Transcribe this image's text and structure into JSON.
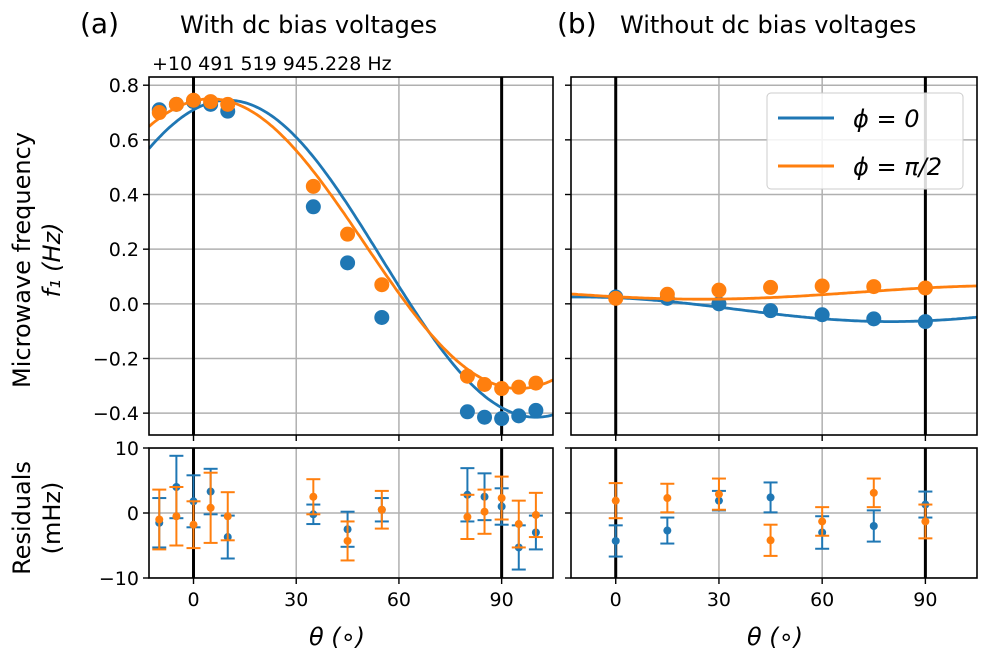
{
  "figure": {
    "panel_a_tag": "(a)",
    "panel_a_title": "With dc bias voltages",
    "panel_b_tag": "(b)",
    "panel_b_title": "Without dc bias voltages",
    "offset_text": "+10 491 519 945.228 Hz",
    "ylabel_top_line1": "Microwave frequency",
    "ylabel_top_line2": "f₁ (Hz)",
    "ylabel_bottom_line1": "Residuals",
    "ylabel_bottom_line2": "(mHz)",
    "xlabel": "θ (∘)",
    "legend": [
      "ϕ = 0",
      "ϕ = π/2"
    ]
  },
  "colors": {
    "blue": "#1f77b4",
    "orange": "#ff7f0e",
    "grid": "#b0b0b0",
    "vline": "#000000"
  },
  "chart_data": [
    {
      "panel": "a-main",
      "type": "scatter",
      "xlim": [
        -13,
        105
      ],
      "ylim": [
        -0.48,
        0.83
      ],
      "xticks": [
        0,
        30,
        60,
        90
      ],
      "yticks": [
        0.8,
        0.6,
        0.4,
        0.2,
        0.0,
        -0.2,
        -0.4
      ],
      "ytick_labels": [
        "0.8",
        "0.6",
        "0.4",
        "0.2",
        "0.0",
        "−0.2",
        "−0.4"
      ],
      "grid": true,
      "vlines": [
        0,
        90
      ],
      "series": [
        {
          "name": "ϕ = 0",
          "color": "blue",
          "x": [
            -10,
            -5,
            0,
            5,
            10,
            35,
            45,
            55,
            80,
            85,
            90,
            95,
            100
          ],
          "y": [
            0.71,
            0.73,
            0.74,
            0.73,
            0.705,
            0.355,
            0.15,
            -0.05,
            -0.395,
            -0.415,
            -0.42,
            -0.41,
            -0.39
          ],
          "fit": {
            "mean": 0.165,
            "amp": 0.58,
            "phase_deg": 10.0
          }
        },
        {
          "name": "ϕ = π/2",
          "color": "orange",
          "x": [
            -10,
            -5,
            0,
            5,
            10,
            35,
            45,
            55,
            80,
            85,
            90,
            95,
            100
          ],
          "y": [
            0.7,
            0.73,
            0.745,
            0.74,
            0.73,
            0.43,
            0.255,
            0.07,
            -0.265,
            -0.295,
            -0.31,
            -0.305,
            -0.29
          ],
          "fit": {
            "mean": 0.22,
            "amp": 0.53,
            "phase_deg": 5.0
          }
        }
      ]
    },
    {
      "panel": "a-residuals",
      "type": "scatter",
      "xlim": [
        -13,
        105
      ],
      "ylim": [
        -10,
        10
      ],
      "xticks": [
        0,
        30,
        60,
        90
      ],
      "xtick_labels": [
        "0",
        "30",
        "60",
        "90"
      ],
      "yticks": [
        10,
        0,
        -10
      ],
      "ytick_labels": [
        "10",
        "0",
        "−10"
      ],
      "grid": true,
      "vlines": [
        0,
        90
      ],
      "series": [
        {
          "name": "ϕ = 0",
          "color": "blue",
          "x": [
            -10,
            -5,
            0,
            5,
            10,
            35,
            45,
            55,
            80,
            85,
            90,
            95,
            100
          ],
          "y": [
            -1.5,
            4.0,
            1.8,
            3.3,
            -3.7,
            -0.2,
            -2.5,
            0.5,
            2.8,
            2.5,
            1.0,
            -5.3,
            -3.0
          ],
          "err": [
            3.8,
            4.8,
            4.0,
            3.5,
            3.3,
            1.5,
            2.7,
            1.8,
            4.1,
            3.6,
            2.8,
            3.4,
            2.6
          ]
        },
        {
          "name": "ϕ = π/2",
          "color": "orange",
          "x": [
            -10,
            -5,
            0,
            5,
            10,
            35,
            45,
            55,
            80,
            85,
            90,
            95,
            100
          ],
          "y": [
            -1.0,
            -0.5,
            -1.8,
            0.8,
            -0.5,
            2.5,
            -4.3,
            0.5,
            -0.6,
            0.2,
            2.3,
            -1.7,
            -0.3
          ],
          "err": [
            4.6,
            4.5,
            3.6,
            5.4,
            3.7,
            2.7,
            3.0,
            2.9,
            3.4,
            3.4,
            3.3,
            3.6,
            3.4
          ]
        }
      ]
    },
    {
      "panel": "b-main",
      "type": "scatter",
      "xlim": [
        -13,
        105
      ],
      "ylim": [
        -0.48,
        0.83
      ],
      "xticks": [
        0,
        30,
        60,
        90
      ],
      "grid": true,
      "vlines": [
        0,
        90
      ],
      "series": [
        {
          "name": "ϕ = 0",
          "color": "blue",
          "x": [
            0,
            15,
            30,
            45,
            60,
            75,
            90
          ],
          "y": [
            0.025,
            0.02,
            0.0,
            -0.025,
            -0.04,
            -0.055,
            -0.065
          ],
          "fit": {
            "mean": -0.02,
            "amp": 0.045,
            "phase_deg": -10.0
          }
        },
        {
          "name": "ϕ = π/2",
          "color": "orange",
          "x": [
            0,
            15,
            30,
            45,
            60,
            75,
            90
          ],
          "y": [
            0.02,
            0.035,
            0.05,
            0.06,
            0.065,
            0.063,
            0.058
          ],
          "fit": {
            "mean": 0.042,
            "amp": -0.025,
            "phase_deg": 25.0
          }
        }
      ]
    },
    {
      "panel": "b-residuals",
      "type": "scatter",
      "xlim": [
        -13,
        105
      ],
      "ylim": [
        -10,
        10
      ],
      "xticks": [
        0,
        30,
        60,
        90
      ],
      "xtick_labels": [
        "0",
        "30",
        "60",
        "90"
      ],
      "grid": true,
      "vlines": [
        0,
        90
      ],
      "series": [
        {
          "name": "ϕ = 0",
          "color": "blue",
          "x": [
            0,
            15,
            30,
            45,
            60,
            75,
            90
          ],
          "y": [
            -4.3,
            -2.7,
            1.9,
            2.4,
            -3.0,
            -2.0,
            1.3
          ],
          "err": [
            2.4,
            2.0,
            1.5,
            2.3,
            2.5,
            2.4,
            2.0
          ]
        },
        {
          "name": "ϕ = π/2",
          "color": "orange",
          "x": [
            0,
            15,
            30,
            45,
            60,
            75,
            90
          ],
          "y": [
            1.9,
            2.3,
            2.9,
            -4.2,
            -1.3,
            3.1,
            -1.3
          ],
          "err": [
            2.7,
            2.2,
            2.4,
            2.4,
            2.2,
            2.2,
            2.6
          ]
        }
      ]
    }
  ]
}
